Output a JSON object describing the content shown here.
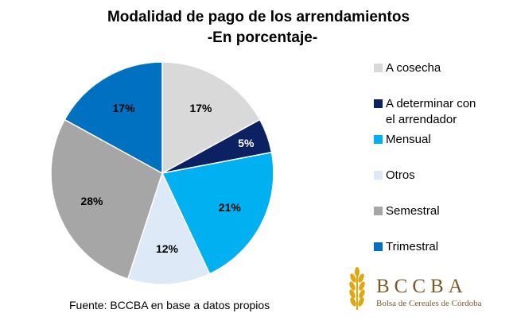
{
  "chart_data": {
    "type": "pie",
    "title": "Modalidad de pago de los arrendamientos",
    "subtitle": "-En porcentaje-",
    "slices": [
      {
        "name": "A cosecha",
        "value": 17,
        "label": "17%",
        "color": "#d9d9d9",
        "label_color": "#000000"
      },
      {
        "name": "A determinar con el arrendador",
        "name_lines": [
          "A determinar con",
          "el arrendador"
        ],
        "value": 5,
        "label": "5%",
        "color": "#0b2161",
        "label_color": "#ffffff"
      },
      {
        "name": "Mensual",
        "value": 21,
        "label": "21%",
        "color": "#00b0f0",
        "label_color": "#000000"
      },
      {
        "name": "Otros",
        "value": 12,
        "label": "12%",
        "color": "#dde9f6",
        "label_color": "#000000"
      },
      {
        "name": "Semestral",
        "value": 28,
        "label": "28%",
        "color": "#a6a6a6",
        "label_color": "#000000"
      },
      {
        "name": "Trimestral",
        "value": 17,
        "label": "17%",
        "color": "#0070c0",
        "label_color": "#000000"
      }
    ],
    "legend_placement": "right",
    "start_angle_deg": 0,
    "direction": "clockwise"
  },
  "source_note": "Fuente: BCCBA en base a datos propios",
  "logo": {
    "name": "BCCBA",
    "subtitle": "Bolsa de Cereales de Córdoba",
    "color": "#7a5a2a",
    "accent_color": "#e0a810"
  }
}
